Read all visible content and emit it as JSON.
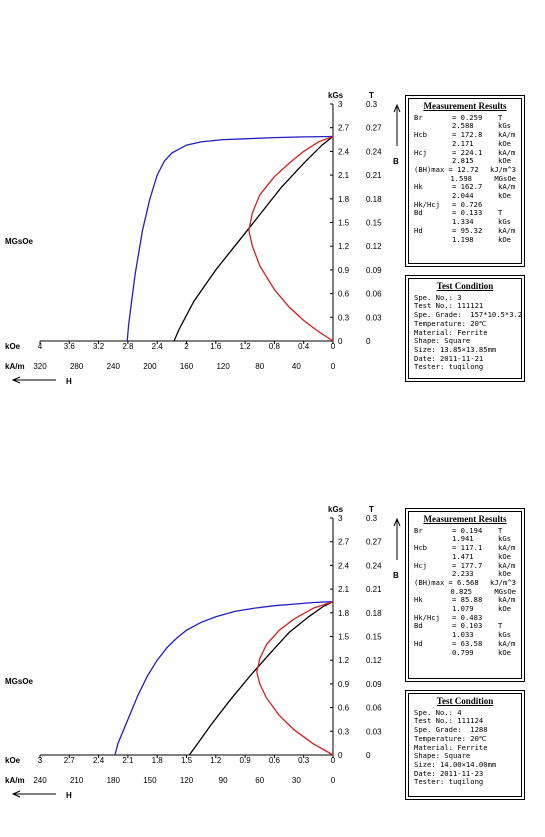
{
  "chart_data": [
    {
      "type": "line",
      "title": "",
      "left_label": "MGsOe",
      "y_axis_kgs": {
        "label": "kGs",
        "ticks": [
          "3",
          "2.7",
          "2.4",
          "2.1",
          "1.8",
          "1.5",
          "1.2",
          "0.9",
          "0.6",
          "0.3",
          "0"
        ],
        "range": [
          0,
          3
        ]
      },
      "y_axis_t": {
        "label": "T",
        "ticks": [
          "0.3",
          "0.27",
          "0.24",
          "0.21",
          "0.18",
          "0.15",
          "0.12",
          "0.09",
          "0.06",
          "0.03",
          "0"
        ],
        "range": [
          0,
          0.3
        ]
      },
      "b_label": "B",
      "x_axis_koe": {
        "label": "kOe",
        "ticks": [
          "4",
          "3.6",
          "3.2",
          "2.8",
          "2.4",
          "2",
          "1.6",
          "1.2",
          "0.8",
          "0.4",
          "0"
        ],
        "range": [
          4,
          0
        ]
      },
      "x_axis_kam": {
        "label": "kA/m",
        "ticks": [
          "320",
          "280",
          "240",
          "200",
          "160",
          "120",
          "80",
          "40",
          "0"
        ],
        "range": [
          320,
          0
        ]
      },
      "h_label": "H",
      "series": [
        {
          "color": "#2020c0",
          "x_koe": [
            2.81,
            2.79,
            2.75,
            2.7,
            2.6,
            2.5,
            2.4,
            2.3,
            2.2,
            2.0,
            1.8,
            1.5,
            1.2,
            0.8,
            0.4,
            0
          ],
          "y_kgs": [
            0,
            0.2,
            0.5,
            0.85,
            1.4,
            1.8,
            2.1,
            2.28,
            2.38,
            2.48,
            2.52,
            2.55,
            2.56,
            2.575,
            2.583,
            2.588
          ]
        },
        {
          "color": "#000000",
          "x_koe": [
            2.171,
            2.1,
            1.9,
            1.6,
            1.3,
            1.0,
            0.7,
            0.4,
            0.15,
            0
          ],
          "y_kgs": [
            0,
            0.15,
            0.5,
            0.9,
            1.25,
            1.6,
            1.95,
            2.25,
            2.48,
            2.588
          ]
        },
        {
          "color": "#d02020",
          "x_koe": [
            0,
            0.2,
            0.4,
            0.6,
            0.8,
            1.0,
            1.1,
            1.15,
            1.1,
            1.0,
            0.8,
            0.6,
            0.4,
            0.2,
            0
          ],
          "y_kgs": [
            0,
            0.12,
            0.26,
            0.43,
            0.65,
            0.95,
            1.2,
            1.4,
            1.62,
            1.85,
            2.08,
            2.25,
            2.4,
            2.52,
            2.588
          ]
        }
      ]
    },
    {
      "type": "line",
      "title": "",
      "left_label": "MGsOe",
      "y_axis_kgs": {
        "label": "kGs",
        "ticks": [
          "3",
          "2.7",
          "2.4",
          "2.1",
          "1.8",
          "1.5",
          "1.2",
          "0.9",
          "0.6",
          "0.3",
          "0"
        ],
        "range": [
          0,
          3
        ]
      },
      "y_axis_t": {
        "label": "T",
        "ticks": [
          "0.3",
          "0.27",
          "0.24",
          "0.21",
          "0.18",
          "0.15",
          "0.12",
          "0.09",
          "0.06",
          "0.03",
          "0"
        ],
        "range": [
          0,
          0.3
        ]
      },
      "b_label": "B",
      "x_axis_koe": {
        "label": "kOe",
        "ticks": [
          "3",
          "2.7",
          "2.4",
          "2.1",
          "1.8",
          "1.5",
          "1.2",
          "0.9",
          "0.6",
          "0.3",
          "0"
        ],
        "range": [
          3,
          0
        ]
      },
      "x_axis_kam": {
        "label": "kA/m",
        "ticks": [
          "240",
          "210",
          "180",
          "150",
          "120",
          "90",
          "60",
          "30",
          "0"
        ],
        "range": [
          240,
          0
        ]
      },
      "h_label": "H",
      "series": [
        {
          "color": "#2020c0",
          "x_koe": [
            2.233,
            2.2,
            2.1,
            2.0,
            1.9,
            1.8,
            1.7,
            1.6,
            1.5,
            1.35,
            1.2,
            1.0,
            0.8,
            0.6,
            0.4,
            0.2,
            0
          ],
          "y_kgs": [
            0,
            0.15,
            0.45,
            0.75,
            1.0,
            1.2,
            1.36,
            1.48,
            1.58,
            1.68,
            1.75,
            1.82,
            1.86,
            1.89,
            1.91,
            1.93,
            1.941
          ]
        },
        {
          "color": "#000000",
          "x_koe": [
            1.471,
            1.4,
            1.25,
            1.05,
            0.85,
            0.65,
            0.45,
            0.25,
            0.1,
            0
          ],
          "y_kgs": [
            0,
            0.12,
            0.38,
            0.7,
            1.0,
            1.28,
            1.55,
            1.75,
            1.88,
            1.941
          ]
        },
        {
          "color": "#d02020",
          "x_koe": [
            0,
            0.2,
            0.4,
            0.55,
            0.68,
            0.75,
            0.78,
            0.75,
            0.68,
            0.55,
            0.4,
            0.2,
            0
          ],
          "y_kgs": [
            0,
            0.14,
            0.32,
            0.5,
            0.72,
            0.9,
            1.05,
            1.22,
            1.4,
            1.58,
            1.72,
            1.86,
            1.941
          ]
        }
      ]
    }
  ],
  "panels": [
    {
      "measurement": {
        "title": "Measurement Results",
        "rows": [
          [
            "Br",
            "= 0.259",
            "T"
          ],
          [
            "",
            "2.588",
            "kGs"
          ],
          [
            "Hcb",
            "= 172.8",
            "kA/m"
          ],
          [
            "",
            "2.171",
            "kOe"
          ],
          [
            "Hcj",
            "= 224.1",
            "kA/m"
          ],
          [
            "",
            "2.815",
            "kOe"
          ],
          [
            "(BH)max",
            "= 12.72",
            "kJ/m^3"
          ],
          [
            "",
            "1.598",
            "MGsOe"
          ],
          [
            "Hk",
            "= 162.7",
            "kA/m"
          ],
          [
            "",
            "2.044",
            "kOe"
          ],
          [
            "Hk/Hcj",
            "= 0.726",
            ""
          ],
          [
            "Bd",
            "= 0.133",
            "T"
          ],
          [
            "",
            "1.334",
            "kGs"
          ],
          [
            "Hd",
            "= 95.32",
            "kA/m"
          ],
          [
            "",
            "1.198",
            "kOe"
          ]
        ]
      },
      "test": {
        "title": "Test Condition",
        "lines": [
          "Spe. No.: 3",
          "Test No.: 111121",
          "Spe. Grade:  157*10.5*3.2",
          "Temperature: 20℃",
          "Material: Ferrite",
          "Shape: Square",
          "Size: 13.85×13.85mm",
          "Date: 2011-11-21",
          "Tester: tuqilong"
        ]
      }
    },
    {
      "measurement": {
        "title": "Measurement Results",
        "rows": [
          [
            "Br",
            "= 0.194",
            "T"
          ],
          [
            "",
            "1.941",
            "kGs"
          ],
          [
            "Hcb",
            "= 117.1",
            "kA/m"
          ],
          [
            "",
            "1.471",
            "kOe"
          ],
          [
            "Hcj",
            "= 177.7",
            "kA/m"
          ],
          [
            "",
            "2.233",
            "kOe"
          ],
          [
            "(BH)max",
            "= 6.568",
            "kJ/m^3"
          ],
          [
            "",
            "0.825",
            "MGsOe"
          ],
          [
            "Hk",
            "= 85.88",
            "kA/m"
          ],
          [
            "",
            "1.079",
            "kOe"
          ],
          [
            "Hk/Hcj",
            "= 0.483",
            ""
          ],
          [
            "Bd",
            "= 0.103",
            "T"
          ],
          [
            "",
            "1.033",
            "kGs"
          ],
          [
            "Hd",
            "= 63.58",
            "kA/m"
          ],
          [
            "",
            "0.799",
            "kOe"
          ]
        ]
      },
      "test": {
        "title": "Test Condition",
        "lines": [
          "Spe. No.: 4",
          "Test No.: 111124",
          "Spe. Grade:  1288",
          "Temperature: 20℃",
          "Material: Ferrite",
          "Shape: Square",
          "Size: 14.00×14.00mm",
          "Date: 2011-11-23",
          "Tester: tuqilong"
        ]
      }
    }
  ]
}
